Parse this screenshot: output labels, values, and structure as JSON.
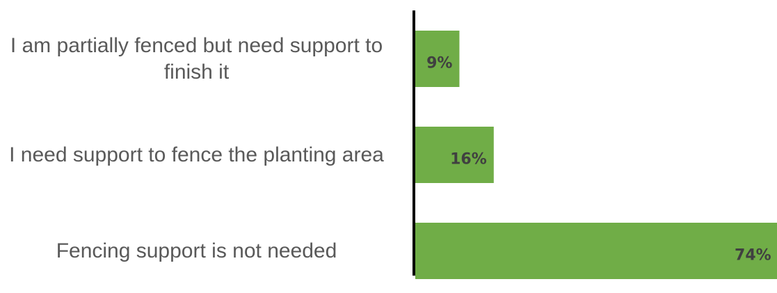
{
  "chart_data": {
    "type": "barh",
    "categories": [
      "I am partially fenced but need support to finish it",
      "I need support to fence the planting area",
      "Fencing support is not needed"
    ],
    "values": [
      9,
      16,
      74
    ],
    "value_labels": [
      "9%",
      "16%",
      "74%"
    ],
    "color": "#70ad47"
  }
}
